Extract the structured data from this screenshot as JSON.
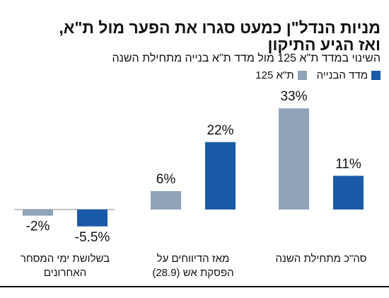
{
  "chart_data": {
    "type": "bar",
    "title": [
      "מניות הנדל\"ן כמעט סגרו את הפער מול ת\"א,",
      "ואז הגיע התיקון"
    ],
    "subtitle": "השינוי במדד ת\"א 125 מול מדד ת\"א בנייה מתחילת השנה",
    "categories": [
      "סה\"כ מתחילת השנה",
      "מאז הדיווחים על הפסקת אש (28.9)",
      "בשלושת ימי המסחר האחרונים"
    ],
    "series": [
      {
        "name": "מדד הבנייה",
        "color": "#1a5aa8",
        "values": [
          11,
          22,
          -5.5
        ],
        "value_labels": [
          "11%",
          "22%",
          "-5.5%"
        ]
      },
      {
        "name": "ת\"א 125",
        "color": "#8fa3b8",
        "values": [
          33,
          6,
          -2
        ],
        "value_labels": [
          "33%",
          "6%",
          "-2%"
        ]
      }
    ],
    "legend": "top-right"
  }
}
